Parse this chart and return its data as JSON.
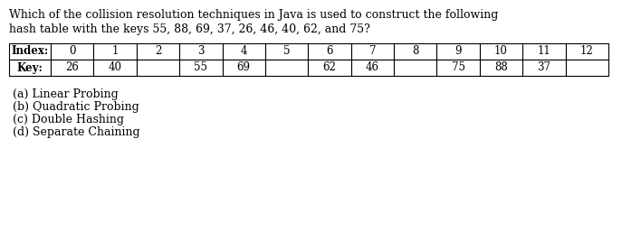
{
  "question_line1": "Which of the collision resolution techniques in Java is used to construct the following",
  "question_line2": "hash table with the keys 55, 88, 69, 37, 26, 46, 40, 62, and 75?",
  "table_indices": [
    "0",
    "1",
    "2",
    "3",
    "4",
    "5",
    "6",
    "7",
    "8",
    "9",
    "10",
    "11",
    "12"
  ],
  "table_keys": [
    "26",
    "40",
    "",
    "55",
    "69",
    "",
    "62",
    "46",
    "",
    "75",
    "88",
    "37",
    ""
  ],
  "options": [
    "(a) Linear Probing",
    "(b) Quadratic Probing",
    "(c) Double Hashing",
    "(d) Separate Chaining"
  ],
  "bg_color": "#ffffff",
  "text_color": "#000000",
  "font_size_question": 9.0,
  "font_size_table": 8.5,
  "font_size_options": 9.0,
  "row_labels": [
    "Index:",
    "Key:"
  ]
}
